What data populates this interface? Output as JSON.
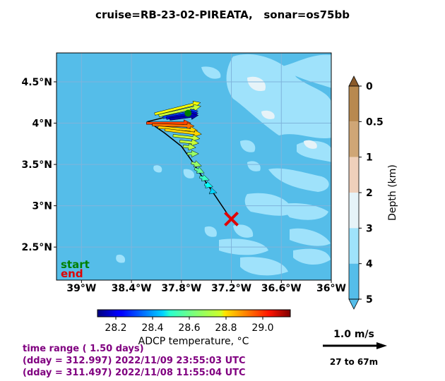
{
  "title": "cruise=RB-23-02-PIREATA,   sonar=os75bb",
  "chart_data": {
    "type": "vector-map",
    "map": {
      "lon_range": [
        -39.3,
        -36.0
      ],
      "lat_range": [
        2.1,
        4.85
      ],
      "x_ticks": [
        {
          "value": -39.0,
          "label": "39°W"
        },
        {
          "value": -38.4,
          "label": "38.4°W"
        },
        {
          "value": -37.8,
          "label": "37.8°W"
        },
        {
          "value": -37.2,
          "label": "37.2°W"
        },
        {
          "value": -36.6,
          "label": "36.6°W"
        },
        {
          "value": -36.0,
          "label": "36°W"
        }
      ],
      "y_ticks": [
        {
          "value": 4.5,
          "label": "4.5°N"
        },
        {
          "value": 4.0,
          "label": "4°N"
        },
        {
          "value": 3.5,
          "label": "3.5°N"
        },
        {
          "value": 3.0,
          "label": "3°N"
        },
        {
          "value": 2.5,
          "label": "2.5°N"
        }
      ],
      "grid": true,
      "ocean_color": "#55bde9",
      "shallow_color": "#9fe2fb",
      "shoal_color": "#e6f3f8"
    },
    "track": [
      [
        -37.22,
        2.86
      ],
      [
        -37.4,
        3.13
      ],
      [
        -37.55,
        3.35
      ],
      [
        -37.68,
        3.55
      ],
      [
        -37.8,
        3.72
      ],
      [
        -38.0,
        3.88
      ],
      [
        -38.2,
        4.02
      ],
      [
        -38.0,
        4.07
      ],
      [
        -37.7,
        4.12
      ]
    ],
    "start_point": [
      -37.72,
      4.12
    ],
    "end_point": [
      -37.2,
      2.84
    ],
    "vectors": [
      {
        "lon": -38.12,
        "lat": 4.11,
        "u": 0.72,
        "v": 0.18,
        "temp": 28.75
      },
      {
        "lon": -38.07,
        "lat": 4.09,
        "u": 0.66,
        "v": 0.15,
        "temp": 28.7
      },
      {
        "lon": -38.02,
        "lat": 4.07,
        "u": 0.55,
        "v": 0.1,
        "temp": 28.3
      },
      {
        "lon": -37.98,
        "lat": 4.06,
        "u": 0.5,
        "v": 0.08,
        "temp": 28.2
      },
      {
        "lon": -37.94,
        "lat": 4.05,
        "u": 0.45,
        "v": 0.06,
        "temp": 28.15
      },
      {
        "lon": -38.22,
        "lat": 4.0,
        "u": 0.7,
        "v": 0.0,
        "temp": 28.95
      },
      {
        "lon": -38.15,
        "lat": 3.98,
        "u": 0.66,
        "v": -0.02,
        "temp": 28.9
      },
      {
        "lon": -38.08,
        "lat": 3.95,
        "u": 0.62,
        "v": -0.05,
        "temp": 28.8
      },
      {
        "lon": -38.0,
        "lat": 3.92,
        "u": 0.58,
        "v": -0.07,
        "temp": 28.8
      },
      {
        "lon": -37.9,
        "lat": 3.85,
        "u": 0.42,
        "v": -0.05,
        "temp": 28.7
      },
      {
        "lon": -37.82,
        "lat": 3.78,
        "u": 0.3,
        "v": -0.03,
        "temp": 28.7
      },
      {
        "lon": -37.78,
        "lat": 3.72,
        "u": 0.2,
        "v": -0.02,
        "temp": 28.68
      },
      {
        "lon": -37.73,
        "lat": 3.63,
        "u": 0.18,
        "v": 0.0,
        "temp": 28.65
      },
      {
        "lon": -37.68,
        "lat": 3.52,
        "u": 0.16,
        "v": -0.05,
        "temp": 28.65
      },
      {
        "lon": -37.64,
        "lat": 3.45,
        "u": 0.15,
        "v": -0.07,
        "temp": 28.6
      },
      {
        "lon": -37.58,
        "lat": 3.35,
        "u": 0.15,
        "v": -0.05,
        "temp": 28.55
      },
      {
        "lon": -37.52,
        "lat": 3.26,
        "u": 0.13,
        "v": -0.04,
        "temp": 28.5
      },
      {
        "lon": -37.45,
        "lat": 3.18,
        "u": 0.1,
        "v": -0.03,
        "temp": 28.45
      }
    ],
    "colorbar": {
      "label": "ADCP temperature, °C",
      "ticks": [
        28.2,
        28.4,
        28.6,
        28.8,
        29.0
      ],
      "tick_labels": [
        "28.2",
        "28.4",
        "28.6",
        "28.8",
        "29.0"
      ],
      "range": [
        28.1,
        29.15
      ],
      "colormap": "jet"
    },
    "depth_bar": {
      "label": "Depth (km)",
      "ticks": [
        "0",
        "0.5",
        "1",
        "2",
        "3",
        "4",
        "5"
      ],
      "colors": [
        "#8a5a2a",
        "#b8894f",
        "#cfa676",
        "#efd0bb",
        "#e6f3f8",
        "#9fe2fb",
        "#55bde9"
      ]
    },
    "legend": {
      "start_label": "start",
      "end_label": "end",
      "start_color": "#008000",
      "end_color": "#e00000"
    },
    "scale": {
      "label": "1.0 m/s",
      "depth_range": "27 to 67m"
    }
  },
  "time_info": {
    "line1": "time range ( 1.50 days)",
    "line2": "(dday = 312.997) 2022/11/09 23:55:03 UTC",
    "line3": "(dday = 311.497) 2022/11/08 11:55:04 UTC",
    "color": "#800080"
  }
}
